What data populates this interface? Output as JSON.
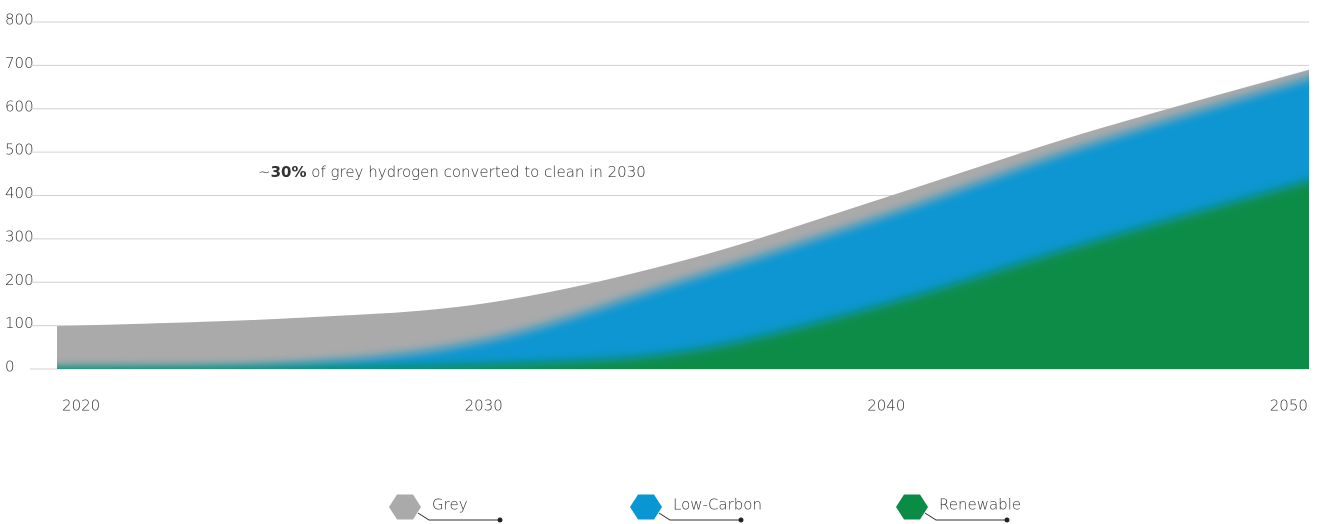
{
  "chart_data": {
    "type": "stacked_area",
    "x": [
      2020,
      2025,
      2030,
      2035,
      2040,
      2045,
      2050
    ],
    "series": [
      {
        "name": "Grey",
        "color": "#aaaaaa",
        "values": [
          97,
          105,
          85,
          45,
          40,
          29,
          18
        ]
      },
      {
        "name": "Low-Carbon",
        "color": "#0a96d2",
        "values": [
          0,
          8,
          55,
          165,
          205,
          226,
          237
        ]
      },
      {
        "name": "Renewable",
        "color": "#0a8c46",
        "values": [
          0,
          2,
          10,
          40,
          150,
          290,
          440
        ]
      }
    ],
    "xlim": [
      2019.4,
      2050.5
    ],
    "xticks": [
      2020,
      2030,
      2040,
      2050
    ],
    "ylim": [
      0,
      800
    ],
    "yticks": [
      0,
      100,
      200,
      300,
      400,
      500,
      600,
      700,
      800
    ],
    "grid": true,
    "annotation": {
      "prefix": "~",
      "emphasis": "30%",
      "text": "of grey hydrogen converted to clean in 2030"
    }
  }
}
